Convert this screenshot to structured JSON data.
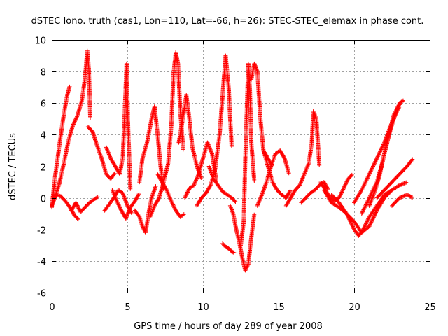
{
  "chart_data": {
    "type": "scatter",
    "title": "dSTEC Iono. truth (cas1, Lon=110, Lat=-66, h=26): STEC-STEC_elemax in phase cont.",
    "xlabel": "GPS time / hours of day 289 of year 2008",
    "ylabel": "dSTEC  / TECUs",
    "xlim": [
      0,
      25
    ],
    "ylim": [
      -6,
      10
    ],
    "x_ticks": [
      "0",
      "5",
      "10",
      "15",
      "20",
      "25"
    ],
    "y_ticks": [
      "-6",
      "-4",
      "-2",
      "0",
      "2",
      "4",
      "6",
      "8",
      "10"
    ],
    "grid": true,
    "marker": "plus",
    "color": "#ff0000",
    "arcs": [
      [
        [
          0.0,
          -0.5
        ],
        [
          0.3,
          0.2
        ],
        [
          0.6,
          0.1
        ],
        [
          0.9,
          -0.2
        ],
        [
          1.2,
          -0.6
        ],
        [
          1.5,
          -1.1
        ],
        [
          1.8,
          -1.4
        ]
      ],
      [
        [
          0.0,
          -0.6
        ],
        [
          0.2,
          1.2
        ],
        [
          0.4,
          2.6
        ],
        [
          0.6,
          4.0
        ],
        [
          0.8,
          5.3
        ],
        [
          1.0,
          6.4
        ],
        [
          1.2,
          7.1
        ]
      ],
      [
        [
          0.2,
          0.0
        ],
        [
          0.5,
          0.9
        ],
        [
          0.8,
          2.2
        ],
        [
          1.1,
          3.6
        ],
        [
          1.4,
          4.6
        ],
        [
          1.7,
          5.2
        ],
        [
          2.0,
          6.2
        ],
        [
          2.2,
          7.6
        ],
        [
          2.35,
          9.3
        ],
        [
          2.45,
          8.2
        ],
        [
          2.55,
          5.0
        ]
      ],
      [
        [
          1.3,
          -0.8
        ],
        [
          1.6,
          -0.3
        ],
        [
          1.9,
          -0.9
        ],
        [
          2.2,
          -0.6
        ],
        [
          2.5,
          -0.3
        ],
        [
          2.8,
          -0.1
        ],
        [
          3.1,
          0.1
        ]
      ],
      [
        [
          2.4,
          4.5
        ],
        [
          2.7,
          4.2
        ],
        [
          3.0,
          3.3
        ],
        [
          3.3,
          2.5
        ],
        [
          3.6,
          1.5
        ],
        [
          3.9,
          1.2
        ],
        [
          4.2,
          1.6
        ]
      ],
      [
        [
          3.5,
          -0.8
        ],
        [
          3.8,
          -0.4
        ],
        [
          4.1,
          0.0
        ],
        [
          4.4,
          0.5
        ],
        [
          4.7,
          0.3
        ],
        [
          5.0,
          -0.5
        ],
        [
          5.3,
          -1.0
        ]
      ],
      [
        [
          3.6,
          3.2
        ],
        [
          3.9,
          2.5
        ],
        [
          4.2,
          2.0
        ],
        [
          4.5,
          1.5
        ],
        [
          4.7,
          2.6
        ],
        [
          4.85,
          6.0
        ],
        [
          4.95,
          8.5
        ],
        [
          5.05,
          4.5
        ],
        [
          5.2,
          0.5
        ]
      ],
      [
        [
          4.0,
          0.5
        ],
        [
          4.3,
          -0.2
        ],
        [
          4.6,
          -0.8
        ],
        [
          4.9,
          -1.3
        ],
        [
          5.2,
          -0.6
        ],
        [
          5.5,
          -0.2
        ],
        [
          5.8,
          0.3
        ]
      ],
      [
        [
          5.5,
          -0.8
        ],
        [
          5.8,
          -1.2
        ],
        [
          6.0,
          -1.8
        ],
        [
          6.2,
          -2.2
        ],
        [
          6.4,
          -1.0
        ],
        [
          6.6,
          0.0
        ],
        [
          6.9,
          0.8
        ]
      ],
      [
        [
          5.8,
          1.0
        ],
        [
          6.0,
          2.5
        ],
        [
          6.3,
          3.5
        ],
        [
          6.6,
          5.0
        ],
        [
          6.8,
          5.8
        ],
        [
          7.0,
          4.0
        ],
        [
          7.2,
          2.0
        ],
        [
          7.4,
          0.5
        ]
      ],
      [
        [
          6.5,
          -1.2
        ],
        [
          6.8,
          -0.5
        ],
        [
          7.1,
          0.0
        ],
        [
          7.4,
          1.0
        ],
        [
          7.7,
          2.2
        ],
        [
          7.9,
          4.5
        ],
        [
          8.05,
          7.8
        ],
        [
          8.2,
          9.2
        ],
        [
          8.35,
          8.5
        ],
        [
          8.5,
          5.5
        ],
        [
          8.7,
          3.0
        ]
      ],
      [
        [
          7.0,
          1.5
        ],
        [
          7.3,
          1.0
        ],
        [
          7.6,
          0.5
        ],
        [
          7.9,
          -0.2
        ],
        [
          8.2,
          -0.8
        ],
        [
          8.5,
          -1.2
        ],
        [
          8.8,
          -1.0
        ]
      ],
      [
        [
          8.4,
          3.5
        ],
        [
          8.7,
          5.2
        ],
        [
          8.9,
          6.5
        ],
        [
          9.1,
          5.0
        ],
        [
          9.3,
          3.2
        ],
        [
          9.6,
          2.0
        ],
        [
          9.9,
          1.2
        ]
      ],
      [
        [
          8.8,
          0.0
        ],
        [
          9.1,
          0.6
        ],
        [
          9.4,
          0.8
        ],
        [
          9.7,
          1.5
        ],
        [
          10.0,
          2.5
        ],
        [
          10.3,
          3.5
        ],
        [
          10.6,
          2.8
        ],
        [
          10.9,
          1.0
        ]
      ],
      [
        [
          9.6,
          -0.5
        ],
        [
          9.9,
          0.0
        ],
        [
          10.2,
          0.3
        ],
        [
          10.5,
          0.8
        ],
        [
          10.8,
          1.8
        ],
        [
          11.1,
          4.0
        ],
        [
          11.3,
          6.5
        ],
        [
          11.5,
          9.0
        ],
        [
          11.7,
          7.0
        ],
        [
          11.9,
          3.2
        ]
      ],
      [
        [
          10.4,
          2.0
        ],
        [
          10.7,
          1.2
        ],
        [
          11.0,
          0.8
        ],
        [
          11.3,
          0.4
        ],
        [
          11.6,
          0.2
        ],
        [
          11.9,
          0.0
        ],
        [
          12.2,
          -0.3
        ]
      ],
      [
        [
          11.3,
          -2.9
        ],
        [
          11.5,
          -3.1
        ],
        [
          11.7,
          -3.2
        ],
        [
          11.9,
          -3.4
        ],
        [
          12.1,
          -3.5
        ]
      ],
      [
        [
          11.8,
          -0.5
        ],
        [
          12.0,
          -1.0
        ],
        [
          12.2,
          -2.0
        ],
        [
          12.4,
          -2.8
        ],
        [
          12.6,
          -3.8
        ],
        [
          12.8,
          -4.6
        ],
        [
          13.0,
          -4.2
        ],
        [
          13.2,
          -2.5
        ],
        [
          13.4,
          -1.0
        ]
      ],
      [
        [
          12.5,
          -3.0
        ],
        [
          12.7,
          -1.5
        ],
        [
          12.8,
          2.5
        ],
        [
          12.9,
          5.5
        ],
        [
          13.0,
          8.5
        ],
        [
          13.1,
          7.0
        ],
        [
          13.2,
          3.5
        ],
        [
          13.4,
          1.0
        ]
      ],
      [
        [
          13.2,
          7.5
        ],
        [
          13.4,
          8.5
        ],
        [
          13.6,
          8.0
        ],
        [
          13.8,
          5.0
        ],
        [
          14.0,
          3.0
        ],
        [
          14.3,
          2.5
        ],
        [
          14.6,
          2.0
        ]
      ],
      [
        [
          13.6,
          -0.5
        ],
        [
          13.9,
          0.2
        ],
        [
          14.2,
          1.0
        ],
        [
          14.5,
          2.0
        ],
        [
          14.8,
          2.8
        ],
        [
          15.1,
          3.0
        ],
        [
          15.4,
          2.5
        ],
        [
          15.7,
          1.5
        ]
      ],
      [
        [
          14.0,
          3.0
        ],
        [
          14.3,
          2.0
        ],
        [
          14.6,
          1.0
        ],
        [
          14.9,
          0.5
        ],
        [
          15.2,
          0.2
        ],
        [
          15.5,
          0.0
        ],
        [
          15.8,
          0.5
        ]
      ],
      [
        [
          15.5,
          -0.5
        ],
        [
          15.8,
          0.0
        ],
        [
          16.1,
          0.5
        ],
        [
          16.4,
          0.8
        ],
        [
          16.7,
          1.5
        ],
        [
          17.0,
          2.2
        ],
        [
          17.2,
          3.5
        ],
        [
          17.3,
          5.5
        ],
        [
          17.5,
          5.0
        ],
        [
          17.7,
          2.0
        ]
      ],
      [
        [
          16.5,
          -0.3
        ],
        [
          16.8,
          0.0
        ],
        [
          17.1,
          0.3
        ],
        [
          17.4,
          0.5
        ],
        [
          17.7,
          0.8
        ],
        [
          18.0,
          1.0
        ],
        [
          18.3,
          0.5
        ]
      ],
      [
        [
          17.8,
          1.0
        ],
        [
          18.1,
          0.5
        ],
        [
          18.4,
          0.0
        ],
        [
          18.7,
          -0.2
        ],
        [
          19.0,
          0.0
        ],
        [
          19.3,
          0.6
        ],
        [
          19.6,
          1.2
        ],
        [
          19.9,
          1.5
        ]
      ],
      [
        [
          18.0,
          0.5
        ],
        [
          18.5,
          -0.3
        ],
        [
          19.0,
          -0.6
        ],
        [
          19.5,
          -1.0
        ],
        [
          20.0,
          -2.0
        ],
        [
          20.3,
          -2.4
        ],
        [
          20.6,
          -2.0
        ],
        [
          21.0,
          -1.2
        ],
        [
          21.5,
          -0.5
        ],
        [
          22.0,
          0.2
        ],
        [
          22.5,
          0.5
        ]
      ],
      [
        [
          18.5,
          0.2
        ],
        [
          19.0,
          -0.3
        ],
        [
          19.5,
          -1.0
        ],
        [
          20.0,
          -1.5
        ],
        [
          20.5,
          -2.2
        ],
        [
          21.0,
          -1.8
        ],
        [
          21.5,
          -0.8
        ],
        [
          22.0,
          0.0
        ],
        [
          22.5,
          0.5
        ],
        [
          23.0,
          0.8
        ],
        [
          23.5,
          1.0
        ]
      ],
      [
        [
          20.0,
          -0.3
        ],
        [
          20.5,
          0.5
        ],
        [
          21.0,
          1.5
        ],
        [
          21.5,
          2.5
        ],
        [
          22.0,
          3.5
        ],
        [
          22.5,
          4.8
        ],
        [
          23.0,
          6.0
        ],
        [
          23.3,
          6.2
        ]
      ],
      [
        [
          20.5,
          -1.0
        ],
        [
          21.0,
          0.0
        ],
        [
          21.5,
          1.0
        ],
        [
          21.8,
          2.0
        ],
        [
          22.1,
          3.2
        ],
        [
          22.4,
          4.3
        ],
        [
          22.7,
          5.2
        ],
        [
          23.0,
          5.8
        ]
      ],
      [
        [
          21.0,
          -0.5
        ],
        [
          21.4,
          0.5
        ],
        [
          21.7,
          1.5
        ],
        [
          22.0,
          2.8
        ],
        [
          22.3,
          4.0
        ],
        [
          22.6,
          5.2
        ],
        [
          22.9,
          5.8
        ],
        [
          23.1,
          6.0
        ]
      ],
      [
        [
          21.5,
          0.0
        ],
        [
          22.0,
          0.5
        ],
        [
          22.5,
          1.0
        ],
        [
          23.0,
          1.5
        ],
        [
          23.5,
          2.0
        ],
        [
          23.9,
          2.5
        ]
      ],
      [
        [
          22.5,
          -0.5
        ],
        [
          23.0,
          0.0
        ],
        [
          23.5,
          0.2
        ],
        [
          23.9,
          0.0
        ]
      ]
    ]
  }
}
